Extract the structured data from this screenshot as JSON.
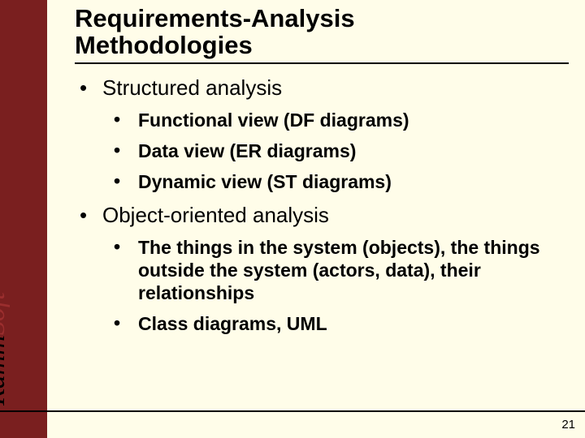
{
  "background_color": "#fffde9",
  "left_bar_color": "#7a1f1f",
  "logo": {
    "part1": "Ramm",
    "part2": "Soft"
  },
  "title_line1": "Requirements-Analysis",
  "title_line2": "Methodologies",
  "bullets": [
    {
      "text": "Structured analysis",
      "children": [
        "Functional view (DF diagrams)",
        "Data view (ER diagrams)",
        "Dynamic view (ST diagrams)"
      ]
    },
    {
      "text": "Object-oriented analysis",
      "children": [
        "The things in the system (objects), the things outside the system (actors, data), their relationships",
        "Class diagrams, UML"
      ]
    }
  ],
  "page_number": "21",
  "fonts": {
    "title_size_pt": 31,
    "lvl1_size_pt": 26,
    "lvl2_size_pt": 23,
    "lvl2_weight": "bold"
  }
}
